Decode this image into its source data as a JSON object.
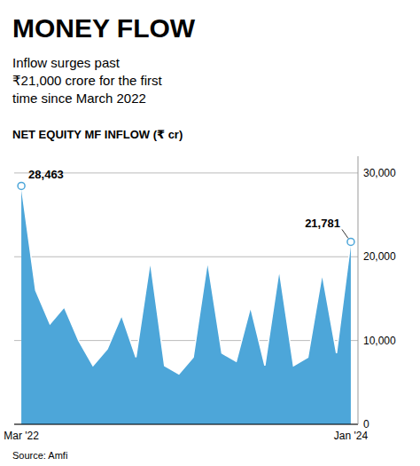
{
  "chart_data": {
    "type": "area",
    "title": "MONEY FLOW",
    "subtitle": "Inflow surges past\n₹21,000 crore for the first\ntime since March 2022",
    "y_label": "NET EQUITY MF INFLOW (₹ cr)",
    "source": "Source: Amfi",
    "categories": [
      "Mar '22",
      null,
      null,
      null,
      null,
      null,
      null,
      null,
      null,
      null,
      null,
      null,
      null,
      null,
      null,
      null,
      null,
      null,
      null,
      null,
      null,
      null,
      null,
      "Jan '24"
    ],
    "values": [
      28463,
      16000,
      12000,
      14000,
      10000,
      7000,
      9000,
      13000,
      8000,
      19500,
      7000,
      6000,
      8000,
      19500,
      8500,
      7500,
      14000,
      7000,
      18500,
      7000,
      8000,
      18000,
      8500,
      21781
    ],
    "color": "#4da6d9",
    "ylim": [
      0,
      32000
    ],
    "yticks": [
      0,
      {
        "value": 10000,
        "label": "10,000"
      },
      {
        "value": 20000,
        "label": "20,000"
      },
      {
        "value": 30000,
        "label": "30,000"
      }
    ],
    "grid": true,
    "annotations": [
      {
        "text": "28,463",
        "value": 28463,
        "index": 0
      },
      {
        "text": "21,781",
        "value": 21781,
        "index": 23
      }
    ]
  }
}
